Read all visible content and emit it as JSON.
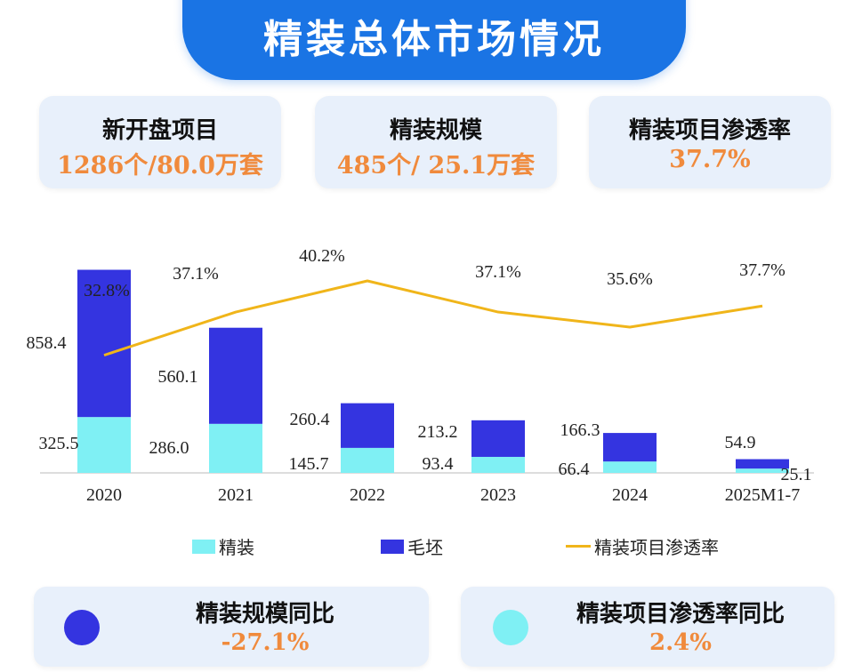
{
  "header": {
    "title": "精装总体市场情况"
  },
  "summary_cards": [
    {
      "label": "新开盘项目",
      "value": "1286个/80.0万套"
    },
    {
      "label": "精装规模",
      "value": "485个/ 25.1万套"
    },
    {
      "label": "精装项目渗透率",
      "value": "37.7%"
    }
  ],
  "chart_data": {
    "type": "bar",
    "categories": [
      "2020",
      "2021",
      "2022",
      "2023",
      "2024",
      "2025M1-7"
    ],
    "series": [
      {
        "name": "精装",
        "kind": "bar-stack-bottom",
        "color": "#7ff0f4",
        "values": [
          325.5,
          286.0,
          145.7,
          93.4,
          66.4,
          25.1
        ],
        "labels": [
          "325.5",
          "286.0",
          "145.7",
          "93.4",
          "66.4",
          "25.1"
        ]
      },
      {
        "name": "毛坯",
        "kind": "bar-stack-top",
        "color": "#3434e0",
        "values": [
          858.4,
          560.1,
          260.4,
          213.2,
          166.3,
          54.9
        ],
        "labels": [
          "858.4",
          "560.1",
          "260.4",
          "213.2",
          "166.3",
          "54.9"
        ]
      },
      {
        "name": "精装项目渗透率",
        "kind": "line",
        "color": "#f0b51a",
        "values": [
          32.8,
          37.1,
          40.2,
          37.1,
          35.6,
          37.7
        ],
        "labels": [
          "32.8%",
          "37.1%",
          "40.2%",
          "37.1%",
          "35.6%",
          "37.7%"
        ]
      }
    ],
    "legend_position": "bottom",
    "grid": false
  },
  "legend": [
    {
      "label": "精装",
      "color": "#7ff0f4"
    },
    {
      "label": "毛坯",
      "color": "#3434e0"
    },
    {
      "label": "精装项目渗透率",
      "color": "#f0b51a"
    }
  ],
  "bottom_cards": [
    {
      "label": "精装规模同比",
      "value": "-27.1%",
      "dot_color": "#3434e0"
    },
    {
      "label": "精装项目渗透率同比",
      "value": "2.4%",
      "dot_color": "#7ff0f4"
    }
  ]
}
